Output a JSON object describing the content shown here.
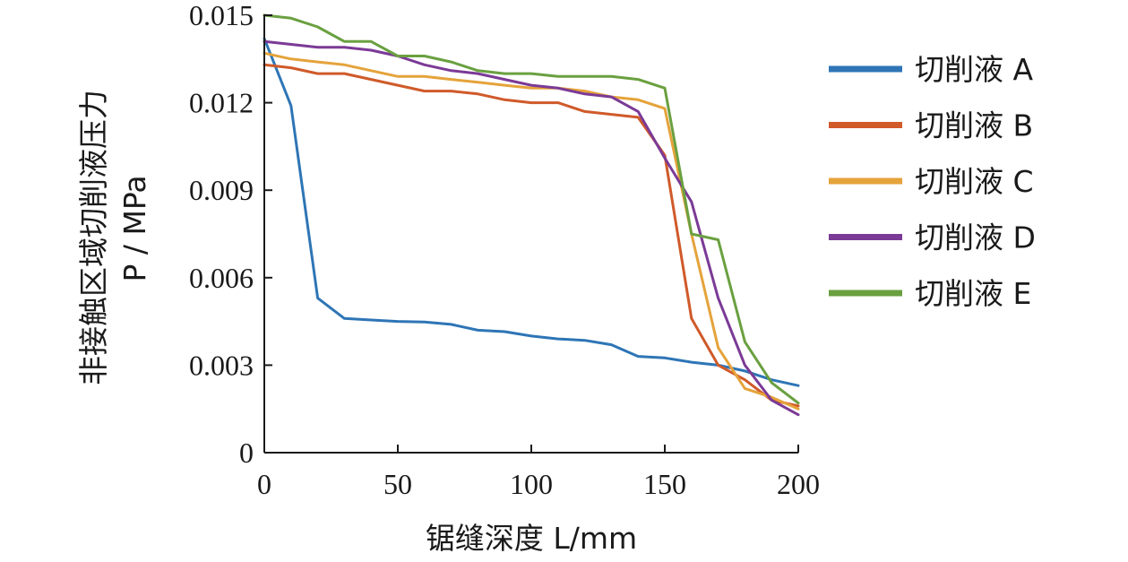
{
  "chart_data": {
    "type": "line",
    "xlabel": "锯缝深度 L/mm",
    "ylabel_line1": "非接触区域切削液压力",
    "ylabel_line2": "P / MPa",
    "xlim": [
      0,
      200
    ],
    "ylim": [
      0,
      0.015
    ],
    "x_ticks": [
      0,
      50,
      100,
      150,
      200
    ],
    "x_tick_labels": [
      "0",
      "50",
      "100",
      "150",
      "200"
    ],
    "y_ticks": [
      0,
      0.003,
      0.006,
      0.009,
      0.012,
      0.015
    ],
    "y_tick_labels": [
      "0",
      "0.003",
      "0.006",
      "0.009",
      "0.012",
      "0.015"
    ],
    "grid": false,
    "legend_position": "right",
    "series": [
      {
        "name": "切削液 A",
        "color": "#2e75b6",
        "x": [
          0,
          10,
          20,
          30,
          40,
          50,
          60,
          70,
          80,
          90,
          100,
          110,
          120,
          130,
          140,
          150,
          160,
          170,
          180,
          190,
          200
        ],
        "y": [
          0.0142,
          0.0119,
          0.0053,
          0.0046,
          0.00455,
          0.0045,
          0.00448,
          0.0044,
          0.0042,
          0.00415,
          0.004,
          0.0039,
          0.00385,
          0.0037,
          0.0033,
          0.00325,
          0.0031,
          0.003,
          0.0028,
          0.0025,
          0.0023
        ]
      },
      {
        "name": "切削液 B",
        "color": "#d05a2a",
        "x": [
          0,
          10,
          20,
          30,
          40,
          50,
          60,
          70,
          80,
          90,
          100,
          110,
          120,
          130,
          140,
          150,
          160,
          170,
          180,
          190,
          200
        ],
        "y": [
          0.0133,
          0.0132,
          0.013,
          0.013,
          0.0128,
          0.0126,
          0.0124,
          0.0124,
          0.0123,
          0.0121,
          0.012,
          0.012,
          0.0117,
          0.0116,
          0.0115,
          0.0102,
          0.0046,
          0.003,
          0.0025,
          0.0018,
          0.0016
        ]
      },
      {
        "name": "切削液 C",
        "color": "#e5a33b",
        "x": [
          0,
          10,
          20,
          30,
          40,
          50,
          60,
          70,
          80,
          90,
          100,
          110,
          120,
          130,
          140,
          150,
          160,
          170,
          180,
          190,
          200
        ],
        "y": [
          0.0137,
          0.0135,
          0.0134,
          0.0133,
          0.0131,
          0.0129,
          0.0129,
          0.0128,
          0.0127,
          0.0126,
          0.0125,
          0.0125,
          0.0124,
          0.0122,
          0.0121,
          0.0118,
          0.0075,
          0.0036,
          0.0022,
          0.0019,
          0.0015
        ]
      },
      {
        "name": "切削液 D",
        "color": "#7b3a96",
        "x": [
          0,
          10,
          20,
          30,
          40,
          50,
          60,
          70,
          80,
          90,
          100,
          110,
          120,
          130,
          140,
          150,
          160,
          170,
          180,
          190,
          200
        ],
        "y": [
          0.0141,
          0.014,
          0.0139,
          0.0139,
          0.0138,
          0.0136,
          0.0133,
          0.0131,
          0.013,
          0.0128,
          0.0126,
          0.0125,
          0.0123,
          0.0122,
          0.0117,
          0.0101,
          0.0086,
          0.0053,
          0.003,
          0.0018,
          0.0013
        ]
      },
      {
        "name": "切削液 E",
        "color": "#6aa040",
        "x": [
          0,
          10,
          20,
          30,
          40,
          50,
          60,
          70,
          80,
          90,
          100,
          110,
          120,
          130,
          140,
          150,
          160,
          170,
          180,
          190,
          200
        ],
        "y": [
          0.015,
          0.0149,
          0.0146,
          0.0141,
          0.0141,
          0.0136,
          0.0136,
          0.0134,
          0.0131,
          0.013,
          0.013,
          0.0129,
          0.0129,
          0.0129,
          0.0128,
          0.0125,
          0.0075,
          0.0073,
          0.0038,
          0.0024,
          0.0017
        ]
      }
    ]
  }
}
